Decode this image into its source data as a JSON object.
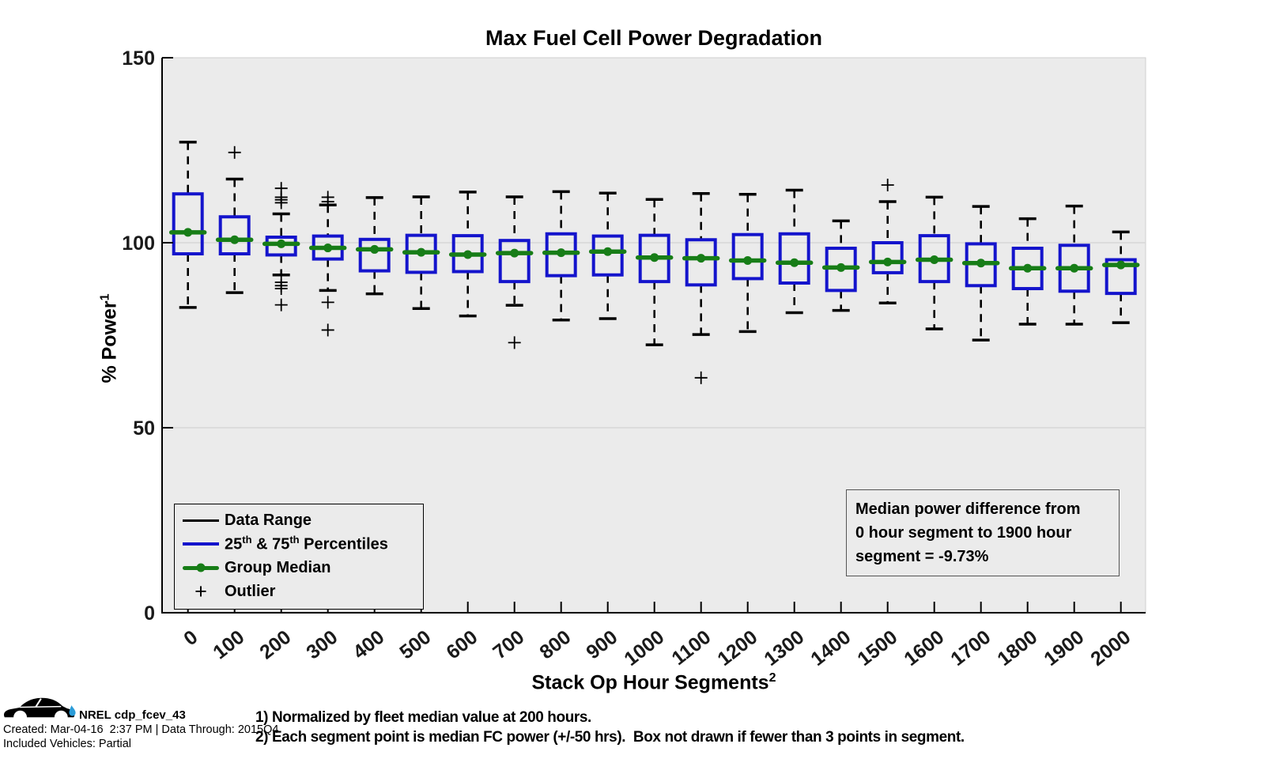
{
  "chart_data": {
    "type": "boxplot",
    "title": "Max Fuel Cell Power Degradation",
    "xlabel": "Stack Op Hour Segments",
    "xlabel_sup": "2",
    "ylabel": "% Power",
    "ylabel_sup": "1",
    "ylim": [
      0,
      150
    ],
    "yticks": [
      0,
      50,
      100,
      150
    ],
    "gridlines_y": [
      50,
      100
    ],
    "legend_position": "lower-left",
    "categories": [
      "0",
      "100",
      "200",
      "300",
      "400",
      "500",
      "600",
      "700",
      "800",
      "900",
      "1000",
      "1100",
      "1200",
      "1300",
      "1400",
      "1500",
      "1600",
      "1700",
      "1800",
      "1900",
      "2000"
    ],
    "boxes": [
      {
        "hours": 0,
        "low": 82.5,
        "q1": 97.0,
        "median": 102.8,
        "q3": 113.2,
        "high": 127.2,
        "outliers": []
      },
      {
        "hours": 100,
        "low": 86.5,
        "q1": 97.0,
        "median": 100.8,
        "q3": 107.0,
        "high": 117.2,
        "outliers": [
          124.4
        ]
      },
      {
        "hours": 200,
        "low": 91.3,
        "q1": 96.7,
        "median": 99.7,
        "q3": 101.5,
        "high": 107.8,
        "outliers": [
          114.7,
          112.3,
          111.6,
          110.8,
          89.3,
          88.4,
          87.6,
          83.2
        ]
      },
      {
        "hours": 300,
        "low": 87.1,
        "q1": 95.6,
        "median": 98.6,
        "q3": 101.8,
        "high": 110.2,
        "outliers": [
          112.3,
          111.1,
          83.9,
          76.4
        ]
      },
      {
        "hours": 400,
        "low": 86.2,
        "q1": 92.4,
        "median": 98.2,
        "q3": 100.9,
        "high": 112.2,
        "outliers": []
      },
      {
        "hours": 500,
        "low": 82.2,
        "q1": 92.0,
        "median": 97.4,
        "q3": 102.0,
        "high": 112.4,
        "outliers": []
      },
      {
        "hours": 600,
        "low": 80.2,
        "q1": 92.2,
        "median": 96.8,
        "q3": 101.9,
        "high": 113.7,
        "outliers": []
      },
      {
        "hours": 700,
        "low": 83.1,
        "q1": 89.5,
        "median": 97.2,
        "q3": 100.6,
        "high": 112.4,
        "outliers": [
          73.0
        ]
      },
      {
        "hours": 800,
        "low": 79.1,
        "q1": 91.1,
        "median": 97.3,
        "q3": 102.4,
        "high": 113.8,
        "outliers": []
      },
      {
        "hours": 900,
        "low": 79.5,
        "q1": 91.3,
        "median": 97.6,
        "q3": 101.8,
        "high": 113.4,
        "outliers": []
      },
      {
        "hours": 1000,
        "low": 72.4,
        "q1": 89.5,
        "median": 96.0,
        "q3": 102.0,
        "high": 111.7,
        "outliers": []
      },
      {
        "hours": 1100,
        "low": 75.2,
        "q1": 88.6,
        "median": 95.8,
        "q3": 100.8,
        "high": 113.3,
        "outliers": [
          63.5
        ]
      },
      {
        "hours": 1200,
        "low": 76.0,
        "q1": 90.3,
        "median": 95.2,
        "q3": 102.2,
        "high": 113.1,
        "outliers": []
      },
      {
        "hours": 1300,
        "low": 81.1,
        "q1": 89.1,
        "median": 94.6,
        "q3": 102.4,
        "high": 114.2,
        "outliers": []
      },
      {
        "hours": 1400,
        "low": 81.7,
        "q1": 87.1,
        "median": 93.3,
        "q3": 98.5,
        "high": 105.9,
        "outliers": []
      },
      {
        "hours": 1500,
        "low": 83.7,
        "q1": 91.9,
        "median": 94.8,
        "q3": 100.0,
        "high": 111.1,
        "outliers": [
          115.6
        ]
      },
      {
        "hours": 1600,
        "low": 76.7,
        "q1": 89.5,
        "median": 95.4,
        "q3": 101.9,
        "high": 112.3,
        "outliers": []
      },
      {
        "hours": 1700,
        "low": 73.7,
        "q1": 88.4,
        "median": 94.5,
        "q3": 99.7,
        "high": 109.8,
        "outliers": []
      },
      {
        "hours": 1800,
        "low": 78.0,
        "q1": 87.6,
        "median": 93.1,
        "q3": 98.5,
        "high": 106.5,
        "outliers": []
      },
      {
        "hours": 1900,
        "low": 78.0,
        "q1": 86.9,
        "median": 93.1,
        "q3": 99.3,
        "high": 109.9,
        "outliers": []
      },
      {
        "hours": 2000,
        "low": 78.4,
        "q1": 86.3,
        "median": 94.0,
        "q3": 95.4,
        "high": 102.9,
        "outliers": []
      }
    ]
  },
  "legend": {
    "items": [
      {
        "label": "Data Range",
        "swatch": "black-line"
      },
      {
        "parts": [
          "25",
          "th",
          " & 75",
          "th",
          " Percentiles"
        ],
        "swatch": "blue-line"
      },
      {
        "label": "Group Median",
        "swatch": "green-line-with-dot"
      },
      {
        "label": "Outlier",
        "swatch": "plus-marker",
        "marker": "+"
      }
    ]
  },
  "annotation": {
    "lines": [
      "Median power difference from",
      "0 hour segment to 1900 hour",
      "segment = -9.73%"
    ]
  },
  "footnotes": {
    "line1": "1) Normalized by fleet median value at 200 hours.",
    "line2": "2) Each segment point is median FC power (+/-50 hrs).  Box not drawn if fewer than 3 points in segment."
  },
  "credits": {
    "logo": "nrel-car-logo",
    "dataset": "NREL cdp_fcev_43",
    "created": "Created: Mar-04-16  2:37 PM | Data Through: 2015Q4",
    "included": "Included Vehicles: Partial"
  },
  "colors": {
    "box": "#1414cc",
    "median": "#177d17",
    "whisker": "#000000",
    "plot_bg": "#ebebeb",
    "plot_edge": "#cfcfcf",
    "gridline": "#d8d8d8",
    "text": "#1a1a1a",
    "droplet": "#2b9cd8"
  }
}
